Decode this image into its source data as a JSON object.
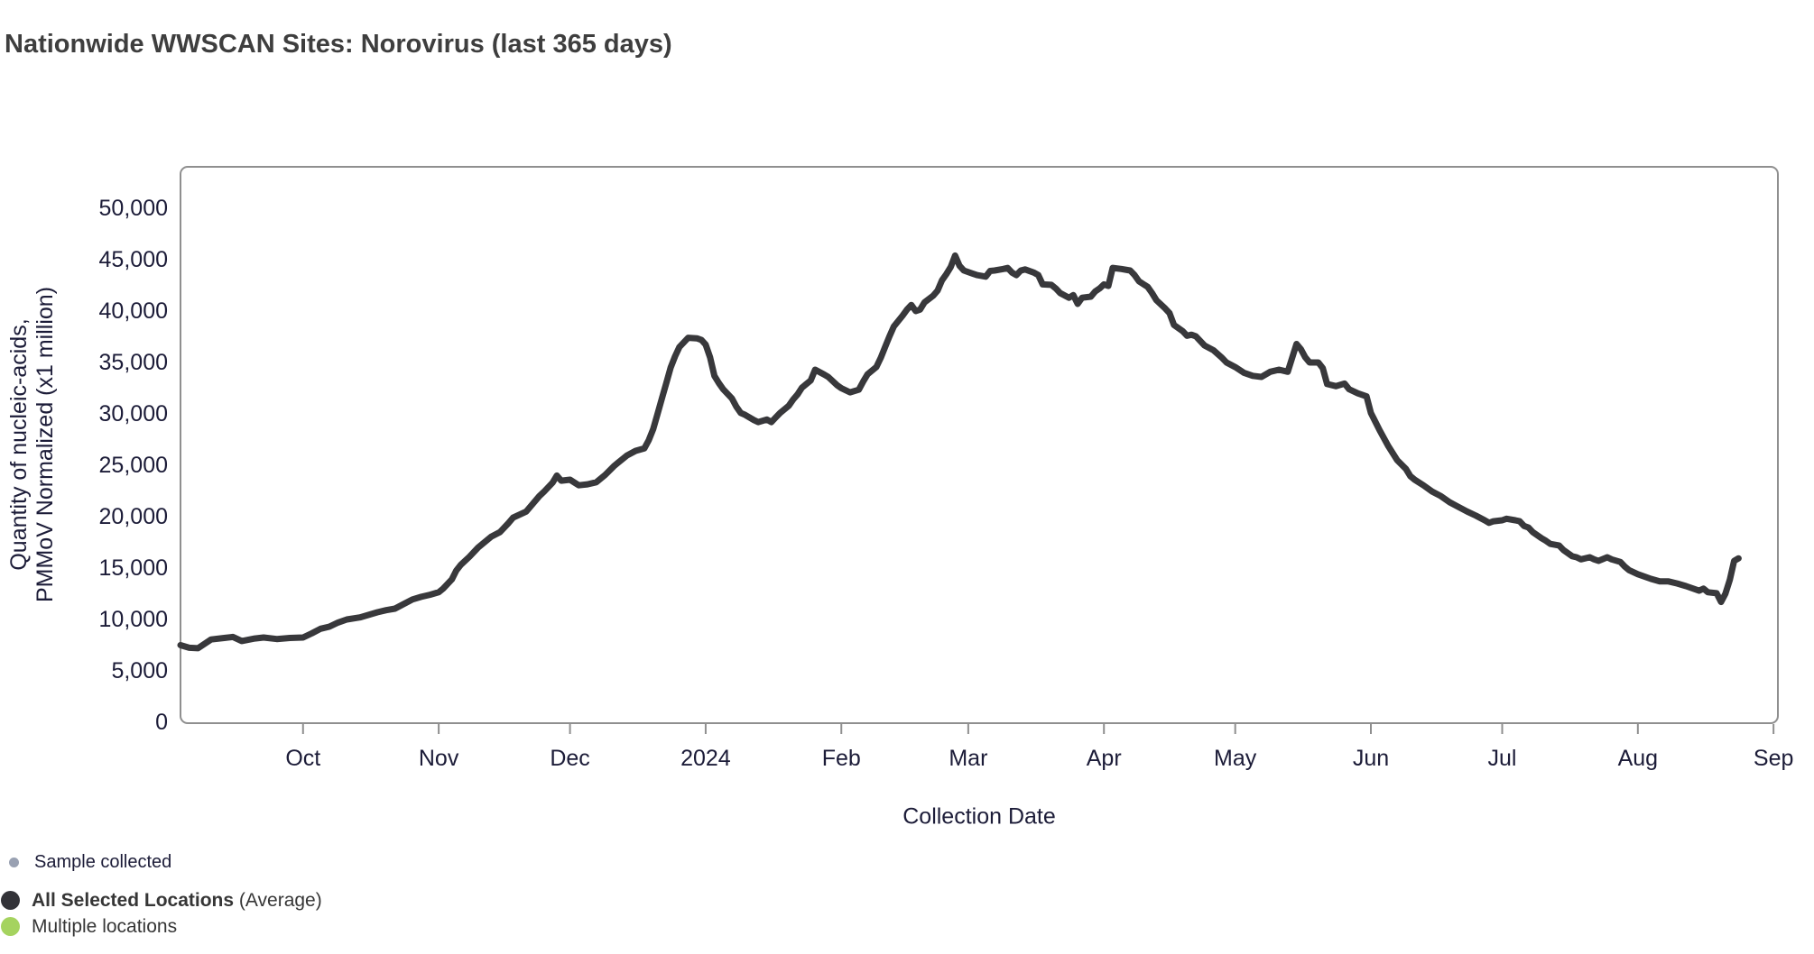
{
  "page": {
    "title": "Nationwide WWSCAN Sites: Norovirus (last 365 days)"
  },
  "chart_data": {
    "type": "line",
    "title": "Nationwide WWSCAN Sites: Norovirus (last 365 days)",
    "xlabel": "Collection Date",
    "ylabel_line1": "Quantity of nucleic-acids,",
    "ylabel_line2": "PMMoV Normalized (x1 million)",
    "ylim": [
      0,
      54000
    ],
    "x_range_days": 365,
    "grid": false,
    "legend_position": "bottom-left",
    "y_ticks": [
      {
        "value": 0,
        "label": "0"
      },
      {
        "value": 5000,
        "label": "5,000"
      },
      {
        "value": 10000,
        "label": "10,000"
      },
      {
        "value": 15000,
        "label": "15,000"
      },
      {
        "value": 20000,
        "label": "20,000"
      },
      {
        "value": 25000,
        "label": "25,000"
      },
      {
        "value": 30000,
        "label": "30,000"
      },
      {
        "value": 35000,
        "label": "35,000"
      },
      {
        "value": 40000,
        "label": "40,000"
      },
      {
        "value": 45000,
        "label": "45,000"
      },
      {
        "value": 50000,
        "label": "50,000"
      }
    ],
    "x_ticks": [
      {
        "day": 28,
        "label": "Oct"
      },
      {
        "day": 59,
        "label": "Nov"
      },
      {
        "day": 89,
        "label": "Dec"
      },
      {
        "day": 120,
        "label": "2024"
      },
      {
        "day": 151,
        "label": "Feb"
      },
      {
        "day": 180,
        "label": "Mar"
      },
      {
        "day": 211,
        "label": "Apr"
      },
      {
        "day": 241,
        "label": "May"
      },
      {
        "day": 272,
        "label": "Jun"
      },
      {
        "day": 302,
        "label": "Jul"
      },
      {
        "day": 333,
        "label": "Aug"
      },
      {
        "day": 364,
        "label": "Sep"
      }
    ],
    "series": [
      {
        "name": "All Selected Locations (Average)",
        "color": "#38383b",
        "line_width": 7,
        "points": [
          [
            0,
            7500
          ],
          [
            2,
            7250
          ],
          [
            4,
            7200
          ],
          [
            7,
            8050
          ],
          [
            10,
            8200
          ],
          [
            12,
            8300
          ],
          [
            14,
            7900
          ],
          [
            17,
            8150
          ],
          [
            19,
            8250
          ],
          [
            22,
            8100
          ],
          [
            25,
            8200
          ],
          [
            28,
            8250
          ],
          [
            30,
            8650
          ],
          [
            32,
            9100
          ],
          [
            34,
            9300
          ],
          [
            36,
            9700
          ],
          [
            38,
            10000
          ],
          [
            41,
            10200
          ],
          [
            43,
            10450
          ],
          [
            45,
            10700
          ],
          [
            47,
            10900
          ],
          [
            49,
            11050
          ],
          [
            51,
            11500
          ],
          [
            53,
            11950
          ],
          [
            55,
            12200
          ],
          [
            57,
            12400
          ],
          [
            59,
            12650
          ],
          [
            60,
            13000
          ],
          [
            62,
            13900
          ],
          [
            63,
            14750
          ],
          [
            64,
            15300
          ],
          [
            66,
            16100
          ],
          [
            68,
            17000
          ],
          [
            71,
            18050
          ],
          [
            73,
            18500
          ],
          [
            75,
            19400
          ],
          [
            76,
            19900
          ],
          [
            79,
            20500
          ],
          [
            80,
            21000
          ],
          [
            82,
            22000
          ],
          [
            83,
            22400
          ],
          [
            85,
            23300
          ],
          [
            86,
            24000
          ],
          [
            87,
            23500
          ],
          [
            89,
            23600
          ],
          [
            91,
            23050
          ],
          [
            93,
            23150
          ],
          [
            95,
            23350
          ],
          [
            97,
            24050
          ],
          [
            99,
            24900
          ],
          [
            100,
            25250
          ],
          [
            102,
            25950
          ],
          [
            104,
            26400
          ],
          [
            106,
            26650
          ],
          [
            107,
            27450
          ],
          [
            108,
            28500
          ],
          [
            109,
            30000
          ],
          [
            110,
            31500
          ],
          [
            111,
            33000
          ],
          [
            112,
            34500
          ],
          [
            113,
            35600
          ],
          [
            114,
            36500
          ],
          [
            116,
            37400
          ],
          [
            118,
            37350
          ],
          [
            119,
            37200
          ],
          [
            120,
            36750
          ],
          [
            121,
            35500
          ],
          [
            122,
            33700
          ],
          [
            123,
            33000
          ],
          [
            124,
            32400
          ],
          [
            126,
            31500
          ],
          [
            127,
            30700
          ],
          [
            128,
            30100
          ],
          [
            129,
            29900
          ],
          [
            131,
            29400
          ],
          [
            132,
            29200
          ],
          [
            134,
            29450
          ],
          [
            135,
            29200
          ],
          [
            136,
            29650
          ],
          [
            137,
            30100
          ],
          [
            139,
            30800
          ],
          [
            140,
            31400
          ],
          [
            141,
            31900
          ],
          [
            142,
            32550
          ],
          [
            144,
            33250
          ],
          [
            145,
            34300
          ],
          [
            147,
            33850
          ],
          [
            148,
            33600
          ],
          [
            150,
            32800
          ],
          [
            151,
            32500
          ],
          [
            153,
            32100
          ],
          [
            155,
            32350
          ],
          [
            156,
            33150
          ],
          [
            157,
            33850
          ],
          [
            159,
            34550
          ],
          [
            160,
            35450
          ],
          [
            161,
            36500
          ],
          [
            162,
            37550
          ],
          [
            163,
            38500
          ],
          [
            165,
            39550
          ],
          [
            166,
            40150
          ],
          [
            167,
            40600
          ],
          [
            168,
            40000
          ],
          [
            169,
            40150
          ],
          [
            170,
            40850
          ],
          [
            172,
            41500
          ],
          [
            173,
            42000
          ],
          [
            174,
            43000
          ],
          [
            175,
            43600
          ],
          [
            176,
            44300
          ],
          [
            177,
            45400
          ],
          [
            178,
            44400
          ],
          [
            179,
            43950
          ],
          [
            181,
            43650
          ],
          [
            182,
            43500
          ],
          [
            184,
            43350
          ],
          [
            185,
            43900
          ],
          [
            186,
            43950
          ],
          [
            188,
            44100
          ],
          [
            189,
            44200
          ],
          [
            190,
            43750
          ],
          [
            191,
            43500
          ],
          [
            192,
            43950
          ],
          [
            193,
            44050
          ],
          [
            195,
            43750
          ],
          [
            196,
            43500
          ],
          [
            197,
            42600
          ],
          [
            199,
            42550
          ],
          [
            200,
            42200
          ],
          [
            201,
            41750
          ],
          [
            203,
            41300
          ],
          [
            204,
            41550
          ],
          [
            205,
            40700
          ],
          [
            206,
            41300
          ],
          [
            208,
            41400
          ],
          [
            209,
            41900
          ],
          [
            210,
            42200
          ],
          [
            211,
            42600
          ],
          [
            212,
            42450
          ],
          [
            213,
            44200
          ],
          [
            215,
            44100
          ],
          [
            217,
            43950
          ],
          [
            218,
            43500
          ],
          [
            219,
            42900
          ],
          [
            221,
            42350
          ],
          [
            222,
            41750
          ],
          [
            223,
            41050
          ],
          [
            225,
            40250
          ],
          [
            226,
            39800
          ],
          [
            227,
            38650
          ],
          [
            229,
            38050
          ],
          [
            230,
            37600
          ],
          [
            231,
            37700
          ],
          [
            232,
            37550
          ],
          [
            234,
            36650
          ],
          [
            236,
            36200
          ],
          [
            238,
            35450
          ],
          [
            239,
            35000
          ],
          [
            241,
            34550
          ],
          [
            243,
            34000
          ],
          [
            245,
            33700
          ],
          [
            247,
            33600
          ],
          [
            249,
            34100
          ],
          [
            251,
            34300
          ],
          [
            253,
            34100
          ],
          [
            255,
            36800
          ],
          [
            256,
            36300
          ],
          [
            257,
            35500
          ],
          [
            258,
            35000
          ],
          [
            260,
            35000
          ],
          [
            261,
            34450
          ],
          [
            262,
            32900
          ],
          [
            264,
            32700
          ],
          [
            266,
            32950
          ],
          [
            267,
            32400
          ],
          [
            269,
            32000
          ],
          [
            271,
            31700
          ],
          [
            272,
            30100
          ],
          [
            274,
            28400
          ],
          [
            276,
            26850
          ],
          [
            278,
            25500
          ],
          [
            280,
            24650
          ],
          [
            281,
            23950
          ],
          [
            282,
            23600
          ],
          [
            284,
            23050
          ],
          [
            286,
            22450
          ],
          [
            288,
            22000
          ],
          [
            290,
            21400
          ],
          [
            292,
            20950
          ],
          [
            294,
            20500
          ],
          [
            296,
            20100
          ],
          [
            298,
            19650
          ],
          [
            299,
            19400
          ],
          [
            300,
            19550
          ],
          [
            302,
            19650
          ],
          [
            303,
            19800
          ],
          [
            305,
            19650
          ],
          [
            306,
            19550
          ],
          [
            307,
            19100
          ],
          [
            308,
            18950
          ],
          [
            309,
            18500
          ],
          [
            311,
            17900
          ],
          [
            312,
            17650
          ],
          [
            313,
            17350
          ],
          [
            315,
            17200
          ],
          [
            316,
            16750
          ],
          [
            318,
            16150
          ],
          [
            319,
            16050
          ],
          [
            320,
            15850
          ],
          [
            322,
            16050
          ],
          [
            323,
            15850
          ],
          [
            324,
            15700
          ],
          [
            326,
            16050
          ],
          [
            327,
            15850
          ],
          [
            329,
            15600
          ],
          [
            330,
            15150
          ],
          [
            331,
            14800
          ],
          [
            333,
            14400
          ],
          [
            336,
            13950
          ],
          [
            338,
            13700
          ],
          [
            340,
            13700
          ],
          [
            342,
            13500
          ],
          [
            344,
            13250
          ],
          [
            347,
            12800
          ],
          [
            348,
            13000
          ],
          [
            349,
            12650
          ],
          [
            351,
            12550
          ],
          [
            352,
            11700
          ],
          [
            353,
            12500
          ],
          [
            354,
            13850
          ],
          [
            355,
            15700
          ],
          [
            356,
            15950
          ]
        ]
      }
    ]
  },
  "legend": {
    "items": [
      {
        "label": "Sample collected",
        "suffix": "",
        "marker_color": "#99a1b2",
        "marker": "small-dot",
        "bold": false
      },
      {
        "label": "All Selected Locations",
        "suffix": " (Average)",
        "marker_color": "#333338",
        "marker": "large-dot",
        "bold": true
      },
      {
        "label": "Multiple locations",
        "suffix": "",
        "marker_color": "#a5d35f",
        "marker": "large-dot",
        "bold": false
      }
    ]
  },
  "colors": {
    "line": "#38383b",
    "axis_border": "#8f8f8f",
    "tick_text": "#1c1c38",
    "title_text": "#3e3e3e",
    "legend_text": "#363636",
    "background": "#ffffff"
  }
}
